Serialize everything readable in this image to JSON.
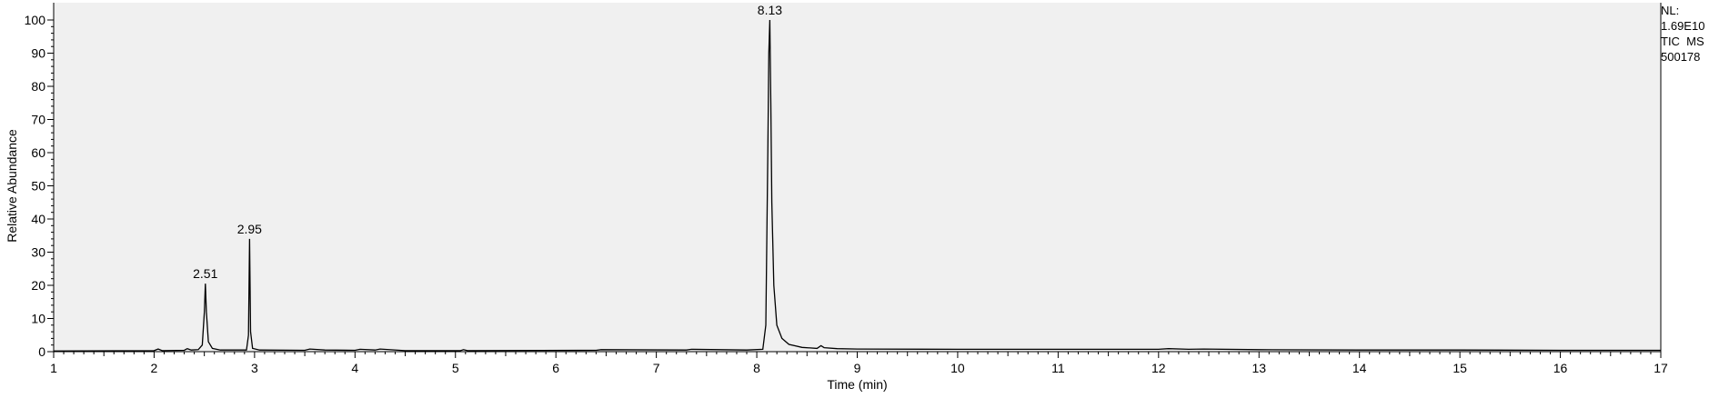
{
  "chart_data": {
    "type": "line",
    "xlabel": "Time (min)",
    "ylabel": "Relative Abundance",
    "xlim": [
      1,
      17
    ],
    "ylim": [
      0,
      100
    ],
    "x_ticks": [
      "1",
      "2",
      "3",
      "4",
      "5",
      "6",
      "7",
      "8",
      "9",
      "10",
      "11",
      "12",
      "13",
      "14",
      "15",
      "16",
      "17"
    ],
    "y_ticks": [
      "0",
      "10",
      "20",
      "30",
      "40",
      "50",
      "60",
      "70",
      "80",
      "90",
      "100"
    ],
    "grid": false,
    "series": [
      {
        "points": [
          [
            1.0,
            0.2
          ],
          [
            2.0,
            0.3
          ],
          [
            2.04,
            0.8
          ],
          [
            2.08,
            0.3
          ],
          [
            2.3,
            0.4
          ],
          [
            2.33,
            0.9
          ],
          [
            2.37,
            0.5
          ],
          [
            2.44,
            0.6
          ],
          [
            2.48,
            2.0
          ],
          [
            2.5,
            12.0
          ],
          [
            2.51,
            20.5
          ],
          [
            2.52,
            12.0
          ],
          [
            2.54,
            3.0
          ],
          [
            2.58,
            1.0
          ],
          [
            2.66,
            0.5
          ],
          [
            2.92,
            0.5
          ],
          [
            2.94,
            5.0
          ],
          [
            2.95,
            34.0
          ],
          [
            2.96,
            6.0
          ],
          [
            2.98,
            1.0
          ],
          [
            3.05,
            0.5
          ],
          [
            3.5,
            0.4
          ],
          [
            3.55,
            0.8
          ],
          [
            3.7,
            0.5
          ],
          [
            4.0,
            0.4
          ],
          [
            4.05,
            0.7
          ],
          [
            4.2,
            0.5
          ],
          [
            4.25,
            0.8
          ],
          [
            4.5,
            0.3
          ],
          [
            5.05,
            0.3
          ],
          [
            5.08,
            0.6
          ],
          [
            5.12,
            0.3
          ],
          [
            6.4,
            0.4
          ],
          [
            6.45,
            0.6
          ],
          [
            7.3,
            0.5
          ],
          [
            7.35,
            0.7
          ],
          [
            7.9,
            0.5
          ],
          [
            8.06,
            0.7
          ],
          [
            8.09,
            8.0
          ],
          [
            8.11,
            60.0
          ],
          [
            8.12,
            90.0
          ],
          [
            8.13,
            100.0
          ],
          [
            8.14,
            75.0
          ],
          [
            8.15,
            45.0
          ],
          [
            8.17,
            20.0
          ],
          [
            8.2,
            8.0
          ],
          [
            8.25,
            4.0
          ],
          [
            8.32,
            2.2
          ],
          [
            8.45,
            1.3
          ],
          [
            8.6,
            1.0
          ],
          [
            8.64,
            1.8
          ],
          [
            8.67,
            1.2
          ],
          [
            8.8,
            0.9
          ],
          [
            9.0,
            0.8
          ],
          [
            10.0,
            0.7
          ],
          [
            11.0,
            0.7
          ],
          [
            12.0,
            0.7
          ],
          [
            12.1,
            0.9
          ],
          [
            12.3,
            0.7
          ],
          [
            12.45,
            0.8
          ],
          [
            13.0,
            0.6
          ],
          [
            14.0,
            0.5
          ],
          [
            15.0,
            0.5
          ],
          [
            16.0,
            0.4
          ],
          [
            17.0,
            0.4
          ]
        ]
      }
    ],
    "peak_labels": [
      {
        "x": 2.51,
        "y": 20.5,
        "label": "2.51"
      },
      {
        "x": 2.95,
        "y": 34.0,
        "label": "2.95"
      },
      {
        "x": 8.13,
        "y": 100.0,
        "label": "8.13"
      }
    ],
    "info_box": [
      "NL:",
      "1.69E10",
      "TIC  MS",
      "500178"
    ]
  }
}
